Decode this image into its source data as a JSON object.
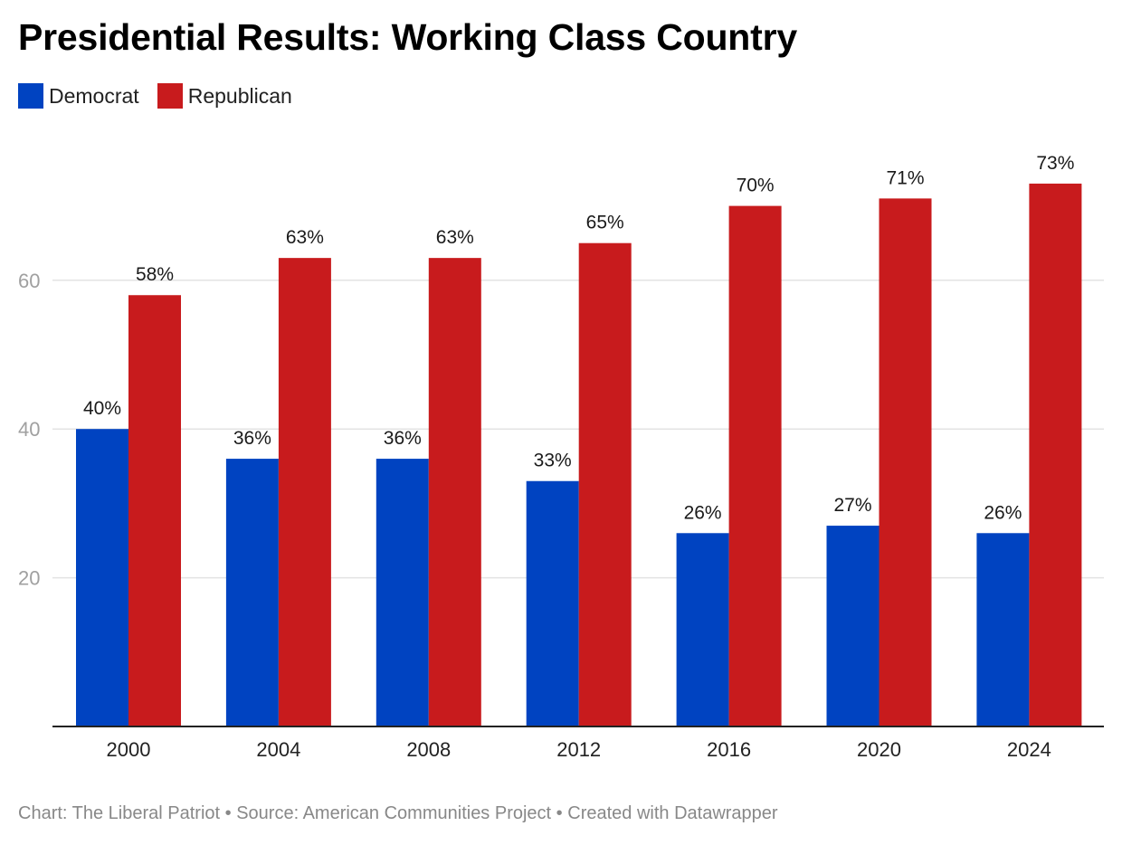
{
  "title": "Presidential Results: Working Class Country",
  "legend": [
    {
      "label": "Democrat",
      "color": "#0043c1"
    },
    {
      "label": "Republican",
      "color": "#c81b1d"
    }
  ],
  "footer": {
    "credit": "Chart: The Liberal Patriot",
    "source": "Source: American Communities Project",
    "tool": "Created with Datawrapper",
    "separator": " • "
  },
  "chart_data": {
    "type": "bar",
    "title": "Presidential Results: Working Class Country",
    "xlabel": "",
    "ylabel": "",
    "categories": [
      "2000",
      "2004",
      "2008",
      "2012",
      "2016",
      "2020",
      "2024"
    ],
    "series": [
      {
        "name": "Democrat",
        "color": "#0043c1",
        "values": [
          40,
          36,
          36,
          33,
          26,
          27,
          26
        ],
        "labels": [
          "40%",
          "36%",
          "36%",
          "33%",
          "26%",
          "27%",
          "26%"
        ]
      },
      {
        "name": "Republican",
        "color": "#c81b1d",
        "values": [
          58,
          63,
          63,
          65,
          70,
          71,
          73
        ],
        "labels": [
          "58%",
          "63%",
          "63%",
          "65%",
          "70%",
          "71%",
          "73%"
        ]
      }
    ],
    "ylim": [
      0,
      80
    ],
    "yticks": [
      20,
      40,
      60
    ],
    "grid": true,
    "legend_position": "top-left"
  }
}
